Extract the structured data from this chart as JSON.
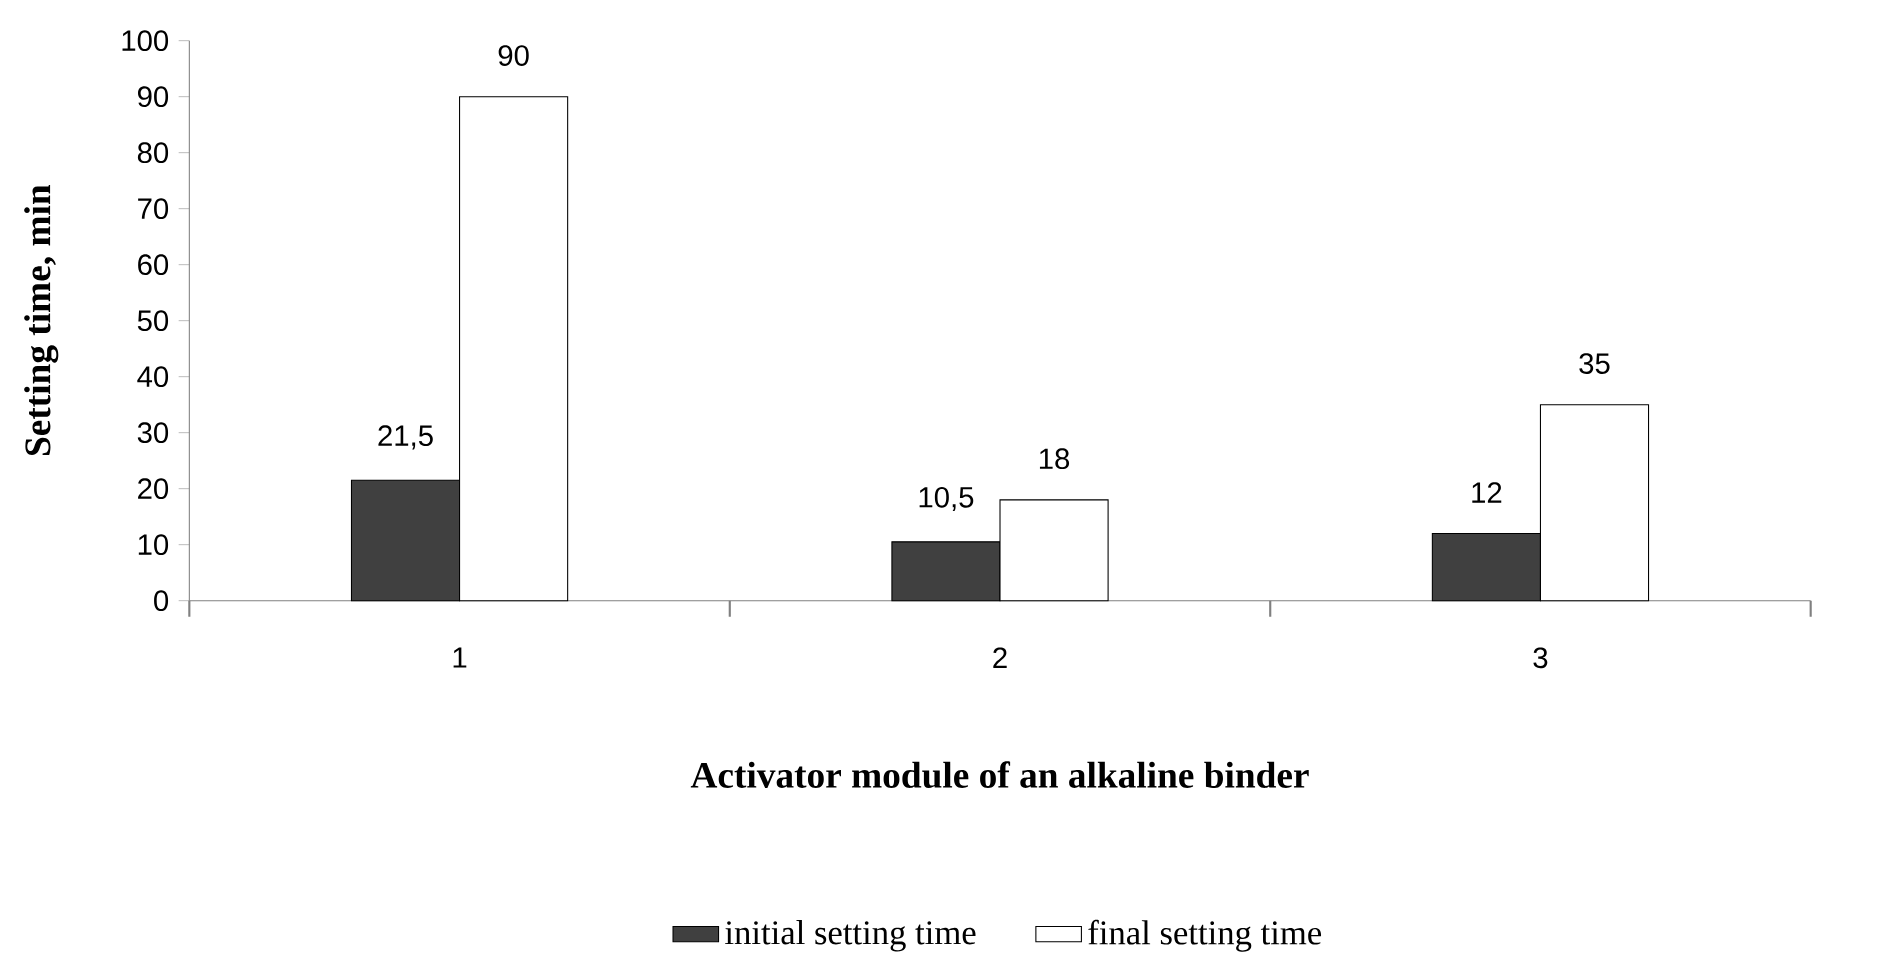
{
  "chart_data": {
    "type": "bar",
    "xlabel": "Activator module of an alkaline binder",
    "ylabel": "Setting time, min",
    "categories": [
      "1",
      "2",
      "3"
    ],
    "series": [
      {
        "name": "initial setting time",
        "color": "#404040",
        "values": [
          21.5,
          10.5,
          12
        ],
        "value_labels": [
          "21,5",
          "10,5",
          "12"
        ]
      },
      {
        "name": "final setting time",
        "color": "#ffffff",
        "values": [
          90,
          18,
          35
        ],
        "value_labels": [
          "90",
          "18",
          "35"
        ]
      }
    ],
    "ylim": [
      0,
      100
    ],
    "yticks": [
      0,
      10,
      20,
      30,
      40,
      50,
      60,
      70,
      80,
      90,
      100
    ],
    "grid": false,
    "legend": "bottom"
  }
}
